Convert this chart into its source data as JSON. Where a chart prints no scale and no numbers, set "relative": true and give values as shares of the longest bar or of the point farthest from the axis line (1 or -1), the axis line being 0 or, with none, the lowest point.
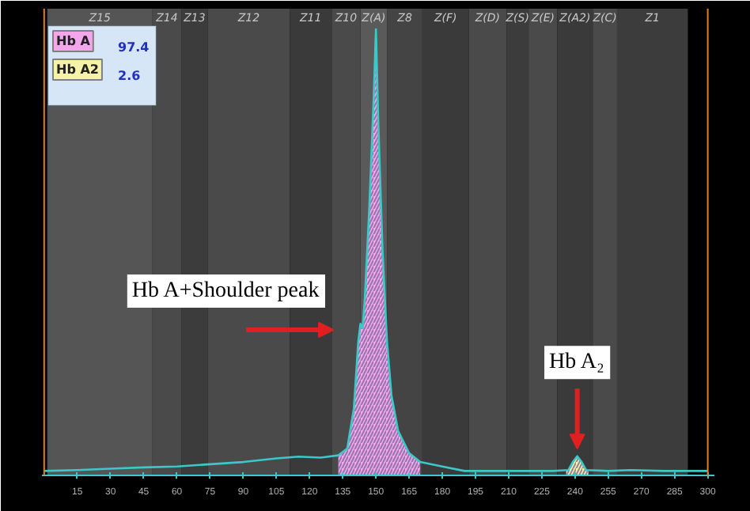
{
  "chart_data": {
    "type": "line",
    "relative": true,
    "xlim": [
      -1,
      303
    ],
    "xticks": [
      15,
      30,
      45,
      60,
      75,
      90,
      105,
      120,
      135,
      150,
      165,
      180,
      195,
      210,
      225,
      240,
      255,
      270,
      285,
      300
    ],
    "grid": false,
    "legend": "top left",
    "series": [
      {
        "name": "Hb A",
        "type": "area",
        "color": "#f4a6ec",
        "x": [
          133,
          137,
          140,
          142,
          143,
          144,
          145,
          147,
          149,
          150,
          151,
          153,
          155,
          157,
          160,
          165,
          170
        ],
        "values": [
          0.045,
          0.06,
          0.15,
          0.3,
          0.34,
          0.33,
          0.4,
          0.6,
          0.85,
          1.0,
          0.8,
          0.5,
          0.3,
          0.18,
          0.1,
          0.05,
          0.03
        ]
      },
      {
        "name": "Hb A2",
        "type": "area",
        "color": "#f6f2a8",
        "x": [
          236,
          237,
          239,
          241,
          243,
          245,
          246
        ],
        "values": [
          0.01,
          0.012,
          0.03,
          0.043,
          0.03,
          0.012,
          0.01
        ]
      },
      {
        "color": "#3cc8c8",
        "x": [
          0,
          15,
          30,
          45,
          60,
          75,
          90,
          105,
          115,
          125,
          133,
          137,
          140,
          142,
          143,
          144,
          145,
          147,
          149,
          150,
          151,
          153,
          155,
          157,
          160,
          165,
          170,
          180,
          190,
          210,
          230,
          237,
          239,
          241,
          243,
          245,
          255,
          265,
          280,
          300
        ],
        "values": [
          0.01,
          0.012,
          0.015,
          0.018,
          0.02,
          0.025,
          0.03,
          0.038,
          0.042,
          0.04,
          0.045,
          0.06,
          0.15,
          0.3,
          0.34,
          0.33,
          0.4,
          0.6,
          0.85,
          1.0,
          0.8,
          0.5,
          0.3,
          0.18,
          0.1,
          0.05,
          0.03,
          0.02,
          0.01,
          0.01,
          0.01,
          0.012,
          0.03,
          0.043,
          0.03,
          0.012,
          0.01,
          0.012,
          0.01,
          0.01
        ]
      }
    ],
    "bands": [
      {
        "axis": "x",
        "from": 1.4,
        "to": 49,
        "label": "Z15",
        "color": "#555555"
      },
      {
        "axis": "x",
        "from": 49,
        "to": 62,
        "label": "Z14",
        "color": "#4a4a4a"
      },
      {
        "axis": "x",
        "from": 62,
        "to": 74,
        "label": "Z13",
        "color": "#3c3c3c"
      },
      {
        "axis": "x",
        "from": 74,
        "to": 111,
        "label": "Z12",
        "color": "#4a4a4a"
      },
      {
        "axis": "x",
        "from": 111,
        "to": 130,
        "label": "Z11",
        "color": "#3a3a3a"
      },
      {
        "axis": "x",
        "from": 130,
        "to": 143,
        "label": "Z10",
        "color": "#4a4a4a"
      },
      {
        "axis": "x",
        "from": 143,
        "to": 155,
        "label": "Z(A)",
        "color": "#5a5a5a"
      },
      {
        "axis": "x",
        "from": 155,
        "to": 171,
        "label": "Z8",
        "color": "#444444"
      },
      {
        "axis": "x",
        "from": 171,
        "to": 192,
        "label": "Z(F)",
        "color": "#3a3a3a"
      },
      {
        "axis": "x",
        "from": 192,
        "to": 209,
        "label": "Z(D)",
        "color": "#4a4a4a"
      },
      {
        "axis": "x",
        "from": 209,
        "to": 219,
        "label": "Z(S)",
        "color": "#3c3c3c"
      },
      {
        "axis": "x",
        "from": 219,
        "to": 232,
        "label": "Z(E)",
        "color": "#4a4a4a"
      },
      {
        "axis": "x",
        "from": 232,
        "to": 248,
        "label": "Z(A2)",
        "color": "#3a3a3a"
      },
      {
        "axis": "x",
        "from": 248,
        "to": 259,
        "label": "Z(C)",
        "color": "#4a4a4a"
      },
      {
        "axis": "x",
        "from": 259,
        "to": 291,
        "label": "Z1",
        "color": "#3c3c3c"
      }
    ],
    "ref_lines": [
      {
        "axis": "x",
        "value": 0,
        "label": null,
        "color": "#e08020"
      },
      {
        "axis": "x",
        "value": 300,
        "label": null,
        "color": "#e08020"
      }
    ],
    "annotations": [
      "97.4",
      "2.6",
      "Hb A+Shoulder peak",
      {
        "text": "Hb A₂",
        "x": 241,
        "y": 0.06
      }
    ]
  }
}
